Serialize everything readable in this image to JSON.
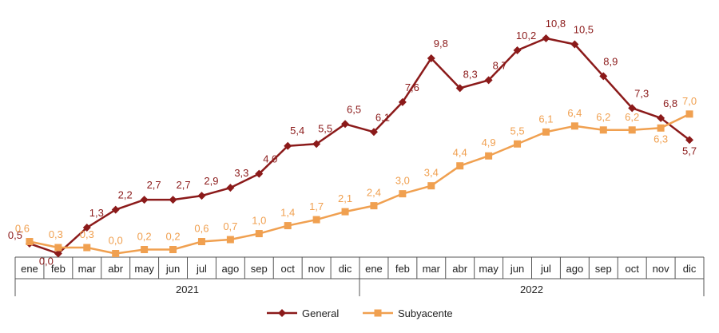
{
  "chart_data": {
    "type": "line",
    "categories": [
      "ene",
      "feb",
      "mar",
      "abr",
      "may",
      "jun",
      "jul",
      "ago",
      "sep",
      "oct",
      "nov",
      "dic",
      "ene",
      "feb",
      "mar",
      "abr",
      "may",
      "jun",
      "jul",
      "ago",
      "sep",
      "oct",
      "nov",
      "dic"
    ],
    "years": [
      "2021",
      "2022"
    ],
    "ylim": [
      0,
      11.5
    ],
    "grid": false,
    "legend": "bottom",
    "series": [
      {
        "name": "General",
        "color": "#8b1a1a",
        "marker": "diamond",
        "values": [
          0.5,
          0.0,
          1.3,
          2.2,
          2.7,
          2.7,
          2.9,
          3.3,
          4.0,
          5.4,
          5.5,
          6.5,
          6.1,
          7.6,
          9.8,
          8.3,
          8.7,
          10.2,
          10.8,
          10.5,
          8.9,
          7.3,
          6.8,
          5.7
        ],
        "labels": [
          "0,5",
          "0,0",
          "1,3",
          "2,2",
          "2,7",
          "2,7",
          "2,9",
          "3,3",
          "4,0",
          "5,4",
          "5,5",
          "6,5",
          "6,1",
          "7,6",
          "9,8",
          "8,3",
          "8,7",
          "10,2",
          "10,8",
          "10,5",
          "8,9",
          "7,3",
          "6,8",
          "5,7"
        ]
      },
      {
        "name": "Subyacente",
        "color": "#f0a050",
        "marker": "square",
        "values": [
          0.6,
          0.3,
          0.3,
          0.0,
          0.2,
          0.2,
          0.6,
          0.7,
          1.0,
          1.4,
          1.7,
          2.1,
          2.4,
          3.0,
          3.4,
          4.4,
          4.9,
          5.5,
          6.1,
          6.4,
          6.2,
          6.2,
          6.3,
          7.0
        ],
        "labels": [
          "0,6",
          "0,3",
          "0,3",
          "0,0",
          "0,2",
          "0,2",
          "0,6",
          "0,7",
          "1,0",
          "1,4",
          "1,7",
          "2,1",
          "2,4",
          "3,0",
          "3,4",
          "4,4",
          "4,9",
          "5,5",
          "6,1",
          "6,4",
          "6,2",
          "6,2",
          "6,3",
          "7,0"
        ]
      }
    ]
  }
}
